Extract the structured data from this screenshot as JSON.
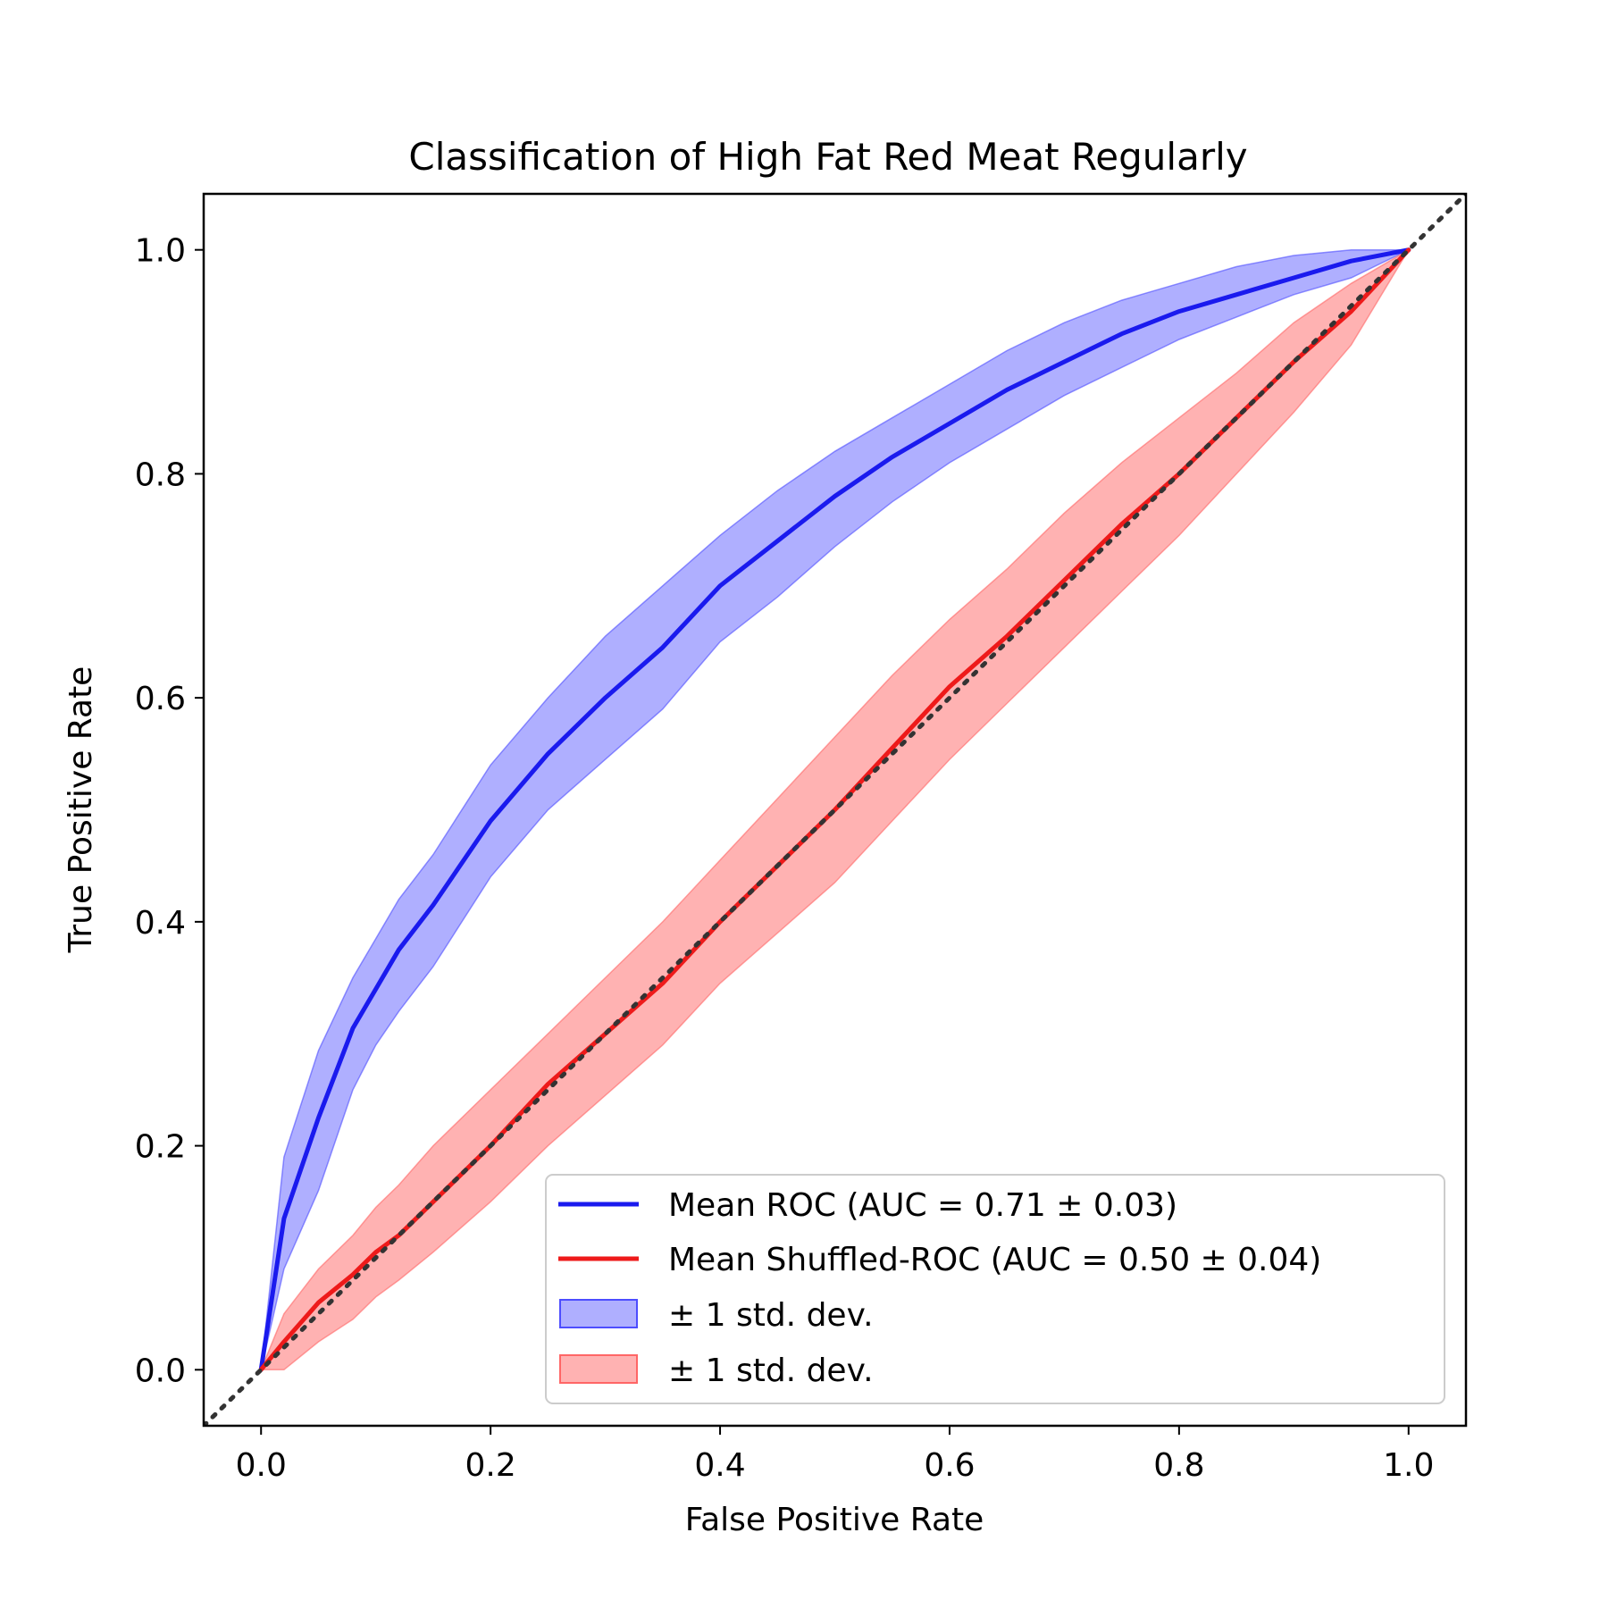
{
  "chart_data": {
    "type": "line",
    "title": "Classification of High Fat Red Meat Regularly",
    "xlabel": "False Positive Rate",
    "ylabel": "True Positive Rate",
    "xlim": [
      -0.05,
      1.05
    ],
    "ylim": [
      -0.05,
      1.05
    ],
    "x_ticks": [
      "0.0",
      "0.2",
      "0.4",
      "0.6",
      "0.8",
      "1.0"
    ],
    "y_ticks": [
      "0.0",
      "0.2",
      "0.4",
      "0.6",
      "0.8",
      "1.0"
    ],
    "grid": false,
    "legend_position": "bottom-right",
    "x": [
      0.0,
      0.02,
      0.05,
      0.08,
      0.1,
      0.12,
      0.15,
      0.2,
      0.25,
      0.3,
      0.35,
      0.4,
      0.45,
      0.5,
      0.55,
      0.6,
      0.65,
      0.7,
      0.75,
      0.8,
      0.85,
      0.9,
      0.95,
      1.0
    ],
    "series": [
      {
        "name": "Mean ROC (AUC = 0.71 ± 0.03)",
        "color": "#1a1aee",
        "values": [
          0.0,
          0.135,
          0.225,
          0.305,
          0.34,
          0.375,
          0.415,
          0.49,
          0.55,
          0.6,
          0.645,
          0.7,
          0.74,
          0.78,
          0.815,
          0.845,
          0.875,
          0.9,
          0.925,
          0.945,
          0.96,
          0.975,
          0.99,
          1.0
        ],
        "upper": [
          0.0,
          0.19,
          0.285,
          0.35,
          0.385,
          0.42,
          0.46,
          0.54,
          0.6,
          0.655,
          0.7,
          0.745,
          0.785,
          0.82,
          0.85,
          0.88,
          0.91,
          0.935,
          0.955,
          0.97,
          0.985,
          0.995,
          1.0,
          1.0
        ],
        "lower": [
          0.0,
          0.09,
          0.16,
          0.25,
          0.29,
          0.32,
          0.36,
          0.44,
          0.5,
          0.545,
          0.59,
          0.65,
          0.69,
          0.735,
          0.775,
          0.81,
          0.84,
          0.87,
          0.895,
          0.92,
          0.94,
          0.96,
          0.975,
          1.0
        ]
      },
      {
        "name": "Mean Shuffled-ROC (AUC = 0.50 ± 0.04)",
        "color": "#ee1a1a",
        "values": [
          0.0,
          0.025,
          0.06,
          0.085,
          0.105,
          0.12,
          0.15,
          0.2,
          0.255,
          0.3,
          0.345,
          0.4,
          0.45,
          0.5,
          0.555,
          0.61,
          0.655,
          0.705,
          0.755,
          0.8,
          0.85,
          0.9,
          0.945,
          1.0
        ],
        "upper": [
          0.0,
          0.05,
          0.09,
          0.12,
          0.145,
          0.165,
          0.2,
          0.25,
          0.3,
          0.35,
          0.4,
          0.455,
          0.51,
          0.565,
          0.62,
          0.67,
          0.715,
          0.765,
          0.81,
          0.85,
          0.89,
          0.935,
          0.97,
          1.0
        ],
        "lower": [
          0.0,
          0.0,
          0.025,
          0.045,
          0.065,
          0.08,
          0.105,
          0.15,
          0.2,
          0.245,
          0.29,
          0.345,
          0.39,
          0.435,
          0.49,
          0.545,
          0.595,
          0.645,
          0.695,
          0.745,
          0.8,
          0.855,
          0.915,
          1.0
        ]
      }
    ],
    "bands": [
      {
        "name": "± 1 std. dev.",
        "color": "#4d4dff",
        "opacity": 0.45
      },
      {
        "name": "± 1 std. dev.",
        "color": "#ff6666",
        "opacity": 0.5
      }
    ],
    "chance_line": {
      "color": "#333333",
      "style": "dotted"
    }
  }
}
